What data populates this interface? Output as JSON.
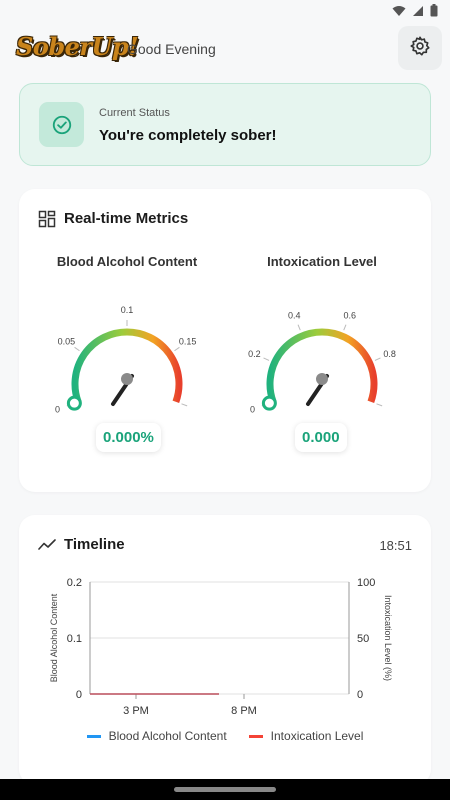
{
  "app": {
    "logo": "SoberUp!",
    "greeting": "Good Evening"
  },
  "status": {
    "label": "Current Status",
    "text": "You're completely sober!"
  },
  "metrics": {
    "title": "Real-time Metrics",
    "bac": {
      "label": "Blood Alcohol Content",
      "value": 0.0,
      "display": "0.000%",
      "min": 0,
      "max": 0.2,
      "ticks": [
        "0",
        "0.05",
        "0.1",
        "0.15"
      ]
    },
    "intox": {
      "label": "Intoxication Level",
      "value": 0.0,
      "display": "0.000",
      "min": 0,
      "max": 1,
      "ticks": [
        "0",
        "0.2",
        "0.4",
        "0.6",
        "0.8"
      ]
    }
  },
  "timeline": {
    "title": "Timeline",
    "time": "18:51",
    "chart_data": {
      "type": "line",
      "x_ticks": [
        "3 PM",
        "8 PM"
      ],
      "y_left": {
        "label": "Blood Alcohol Content",
        "ticks": [
          "0",
          "0.1",
          "0.2"
        ],
        "range": [
          0,
          0.2
        ]
      },
      "y_right": {
        "label": "Intoxication Level (%)",
        "ticks": [
          "0",
          "50",
          "100"
        ],
        "range": [
          0,
          100
        ]
      },
      "series": [
        {
          "name": "Blood Alcohol Content",
          "color": "#2196f3",
          "values": [
            0,
            0
          ]
        },
        {
          "name": "Intoxication Level",
          "color": "#f44336",
          "values": [
            0,
            0
          ]
        }
      ],
      "grid": true,
      "legend": "bottom"
    }
  },
  "colors": {
    "accent": "#1aa37a",
    "status_bg": "#e6f5ef"
  }
}
